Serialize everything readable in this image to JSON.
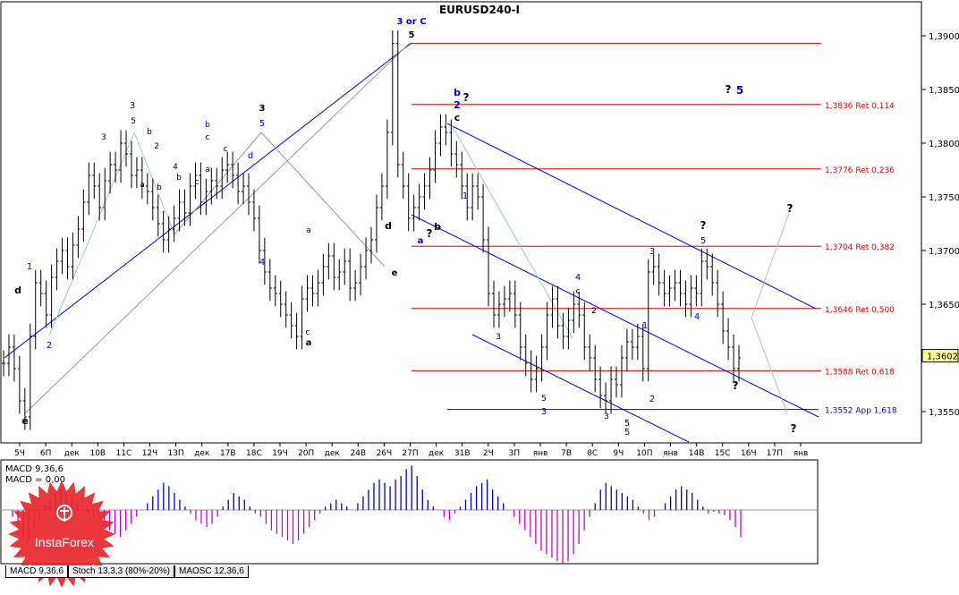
{
  "chart_data": {
    "type": "line",
    "title": "EURUSD240-I",
    "ylim": [
      1.3525,
      1.3912
    ],
    "price_ticks": [
      "1,3900",
      "1,3850",
      "1,3800",
      "1,3750",
      "1,3700",
      "1,3650",
      "1,3550"
    ],
    "current_price": "1,3602",
    "x_ticks": [
      "5Ч",
      "6П",
      "дек",
      "10В",
      "11С",
      "12Ч",
      "13П",
      "дек",
      "17В",
      "18С",
      "19Ч",
      "20П",
      "дек",
      "24В",
      "26Ч",
      "27П",
      "дек",
      "31В",
      "2Ч",
      "3П",
      "янв",
      "7В",
      "8С",
      "9Ч",
      "10П",
      "янв",
      "14В",
      "15С",
      "16Ч",
      "17П",
      "янв"
    ],
    "fib_levels": [
      {
        "label": "1,3836 Ret 0,114",
        "price": 1.3836,
        "color": "#e00000"
      },
      {
        "label": "1,3776 Ret 0,236",
        "price": 1.3776,
        "color": "#e00000"
      },
      {
        "label": "1,3704 Ret 0,382",
        "price": 1.3704,
        "color": "#e00000"
      },
      {
        "label": "1,3646 Ret 0,500",
        "price": 1.3646,
        "color": "#e00000"
      },
      {
        "label": "1,3588 Ret 0,618",
        "price": 1.3588,
        "color": "#e00000"
      },
      {
        "label": "1,3552 App 1,618",
        "price": 1.3552,
        "color": "#0000cc"
      }
    ],
    "top_level_price": 1.3893,
    "series": [
      {
        "values": [
          1.3595,
          1.361,
          1.359,
          1.356,
          1.3545,
          1.362,
          1.367,
          1.366,
          1.364,
          1.3675,
          1.369,
          1.37,
          1.3685,
          1.3705,
          1.372,
          1.3745,
          1.377,
          1.376,
          1.374,
          1.3765,
          1.378,
          1.3775,
          1.38,
          1.379,
          1.377,
          1.3775,
          1.376,
          1.3755,
          1.374,
          1.3725,
          1.371,
          1.372,
          1.373,
          1.3745,
          1.3735,
          1.376,
          1.377,
          1.3745,
          1.3755,
          1.3765,
          1.376,
          1.3775,
          1.378,
          1.377,
          1.3755,
          1.376,
          1.3745,
          1.373,
          1.37,
          1.368,
          1.3665,
          1.366,
          1.365,
          1.364,
          1.363,
          1.362,
          1.3655,
          1.3665,
          1.366,
          1.367,
          1.3685,
          1.3695,
          1.3675,
          1.368,
          1.369,
          1.3665,
          1.367,
          1.3685,
          1.37,
          1.371,
          1.374,
          1.376,
          1.381,
          1.3893,
          1.378,
          1.376,
          1.373,
          1.374,
          1.375,
          1.376,
          1.3775,
          1.38,
          1.3815,
          1.381,
          1.379,
          1.378,
          1.376,
          1.374,
          1.376,
          1.375,
          1.371,
          1.366,
          1.364,
          1.365,
          1.3655,
          1.366,
          1.364,
          1.361,
          1.3595,
          1.358,
          1.359,
          1.361,
          1.364,
          1.3655,
          1.363,
          1.362,
          1.3635,
          1.365,
          1.364,
          1.361,
          1.36,
          1.358,
          1.3565,
          1.356,
          1.358,
          1.3575,
          1.36,
          1.3615,
          1.361,
          1.362,
          1.359,
          1.368,
          1.3685,
          1.367,
          1.366,
          1.3665,
          1.367,
          1.366,
          1.365,
          1.3665,
          1.366,
          1.369,
          1.3685,
          1.367,
          1.365,
          1.3625,
          1.361,
          1.359,
          1.36
        ]
      }
    ],
    "wave_labels": [
      {
        "text": "3 or C",
        "color": "#0000cc"
      },
      {
        "text": "5",
        "color": "#000000"
      },
      {
        "text": "? ",
        "color": "#000000"
      },
      {
        "text": "5",
        "color": "#0000cc"
      },
      {
        "text": "b",
        "color": "#0000cc"
      },
      {
        "text": "2",
        "color": "#0000cc"
      },
      {
        "text": "?",
        "color": "#000000"
      },
      {
        "text": "c",
        "color": "#000000"
      },
      {
        "text": "3",
        "color": "#0000cc"
      },
      {
        "text": "5",
        "color": "#000000"
      },
      {
        "text": "b",
        "color": "#000000"
      },
      {
        "text": "3",
        "color": "#000000"
      },
      {
        "text": "2",
        "color": "#000000"
      },
      {
        "text": "b",
        "color": "#0000cc"
      },
      {
        "text": "c",
        "color": "#000000"
      },
      {
        "text": "5",
        "color": "#0000cc"
      },
      {
        "text": "3",
        "color": "#000000"
      },
      {
        "text": "4",
        "color": "#000000"
      },
      {
        "text": "d",
        "color": "#0000cc"
      },
      {
        "text": "a",
        "color": "#000000"
      },
      {
        "text": "b",
        "color": "#000000"
      },
      {
        "text": "c",
        "color": "#000000"
      },
      {
        "text": "d",
        "color": "#000000"
      },
      {
        "text": "c",
        "color": "#000000"
      },
      {
        "text": "a",
        "color": "#000000"
      },
      {
        "text": "b",
        "color": "#000000"
      },
      {
        "text": "e",
        "color": "#000000"
      },
      {
        "text": "4",
        "color": "#0000cc"
      },
      {
        "text": "a",
        "color": "#000000"
      },
      {
        "text": "c",
        "color": "#000000"
      },
      {
        "text": "a",
        "color": "#000000"
      },
      {
        "text": "d",
        "color": "#000000"
      },
      {
        "text": "e",
        "color": "#000000"
      },
      {
        "text": "2",
        "color": "#0000cc"
      },
      {
        "text": "1",
        "color": "#0000cc"
      },
      {
        "text": "a",
        "color": "#0000cc"
      },
      {
        "text": "?",
        "color": "#000000"
      },
      {
        "text": "b",
        "color": "#000000"
      },
      {
        "text": "1",
        "color": "#0000cc"
      },
      {
        "text": "3",
        "color": "#000000"
      },
      {
        "text": "4",
        "color": "#0000cc"
      },
      {
        "text": "c",
        "color": "#000000"
      },
      {
        "text": "2",
        "color": "#000000"
      },
      {
        "text": "5",
        "color": "#000000"
      },
      {
        "text": "3",
        "color": "#0000cc"
      },
      {
        "text": "3",
        "color": "#000000"
      },
      {
        "text": "5",
        "color": "#000000"
      },
      {
        "text": "5",
        "color": "#0000cc"
      },
      {
        "text": "3",
        "color": "#0000cc"
      },
      {
        "text": "1",
        "color": "#0000cc"
      },
      {
        "text": "2",
        "color": "#0000cc"
      },
      {
        "text": "?",
        "color": "#000000"
      },
      {
        "text": "5",
        "color": "#0000cc"
      },
      {
        "text": "4",
        "color": "#0000cc"
      },
      {
        "text": "?",
        "color": "#000000"
      },
      {
        "text": "?",
        "color": "#000000"
      },
      {
        "text": "?",
        "color": "#000000"
      }
    ],
    "macd": {
      "title": "MACD 9,36,6",
      "value_label": "MACD = 0,00",
      "value_label_color": "#ff00ff",
      "positive_color": "#0000cc",
      "negative_color": "#cc00cc",
      "values": [
        -0.2,
        -0.5,
        -0.8,
        -0.9,
        -0.6,
        -0.3,
        0.1,
        0.3,
        0.5,
        0.6,
        0.5,
        0.4,
        0.2,
        0.0,
        -0.1,
        -0.2,
        -0.3,
        -0.5,
        -0.6,
        -0.7,
        -0.8,
        -0.6,
        -0.4,
        -0.2,
        0.0,
        0.2,
        0.4,
        0.6,
        0.8,
        0.7,
        0.5,
        0.3,
        0.1,
        -0.1,
        -0.3,
        -0.4,
        -0.5,
        -0.4,
        -0.2,
        0.1,
        0.3,
        0.5,
        0.4,
        0.3,
        0.1,
        -0.1,
        -0.2,
        -0.4,
        -0.6,
        -0.7,
        -0.8,
        -0.9,
        -1.0,
        -0.9,
        -0.7,
        -0.5,
        -0.3,
        -0.1,
        0.1,
        0.2,
        0.3,
        0.2,
        0.1,
        0.0,
        0.2,
        0.4,
        0.6,
        0.8,
        0.9,
        0.8,
        0.7,
        0.9,
        1.0,
        1.2,
        1.3,
        1.0,
        0.6,
        0.3,
        0.1,
        0.0,
        -0.2,
        -0.3,
        -0.1,
        0.1,
        0.3,
        0.5,
        0.7,
        0.8,
        0.9,
        0.6,
        0.4,
        0.2,
        0.0,
        -0.2,
        -0.4,
        -0.6,
        -0.8,
        -1.0,
        -1.2,
        -1.3,
        -1.4,
        -1.5,
        -1.6,
        -1.5,
        -1.3,
        -1.0,
        -0.6,
        -0.2,
        0.2,
        0.6,
        0.8,
        0.7,
        0.6,
        0.5,
        0.4,
        0.3,
        0.1,
        -0.1,
        -0.3,
        -0.2,
        0.0,
        0.2,
        0.4,
        0.6,
        0.7,
        0.6,
        0.5,
        0.3,
        0.1,
        -0.1,
        -0.05,
        -0.1,
        -0.15,
        -0.3,
        -0.5,
        -0.8
      ]
    }
  },
  "tabs": [
    {
      "label": "MACD 9,36,6"
    },
    {
      "label": "Stoch 13,3,3 (80%-20%)"
    },
    {
      "label": "MAOSC 12,36,6"
    }
  ],
  "logo": {
    "text": "InstaForex"
  }
}
